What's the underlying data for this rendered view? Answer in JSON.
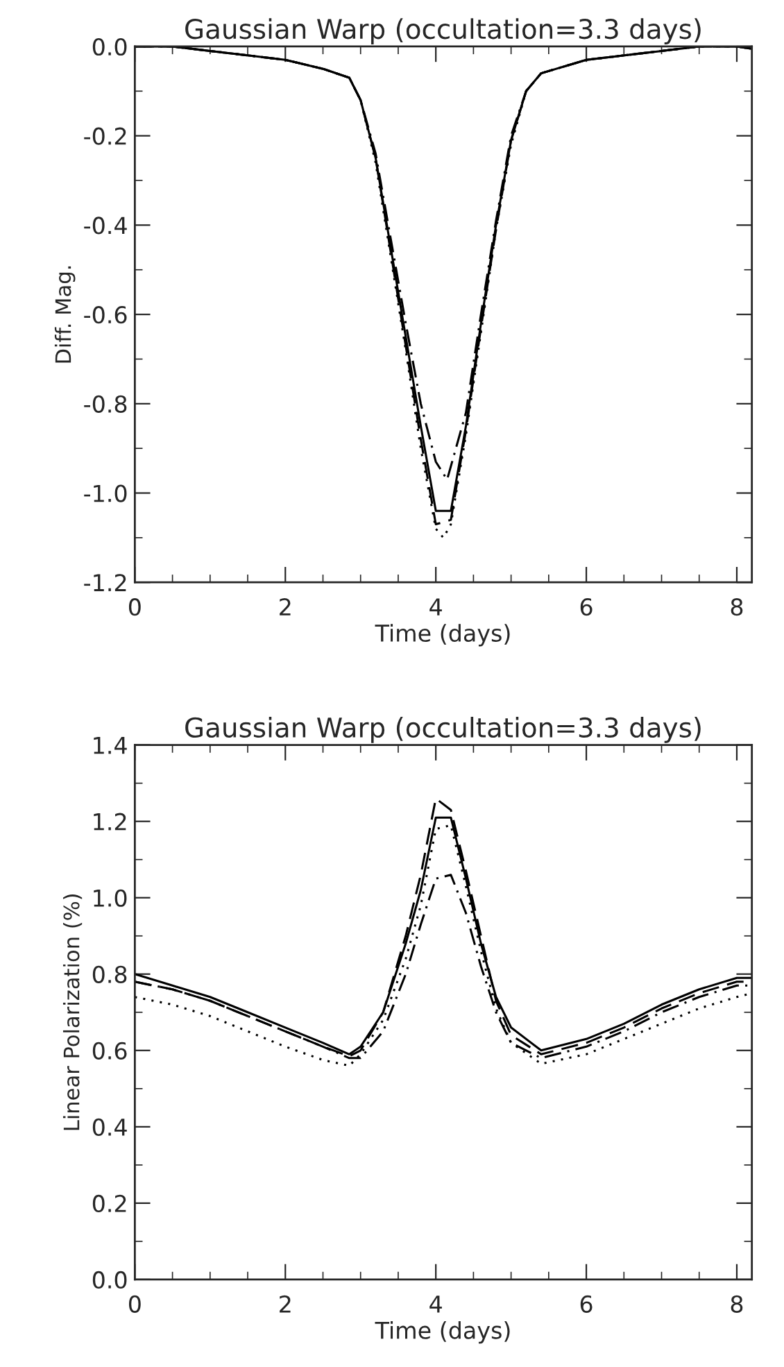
{
  "chart_data": [
    {
      "type": "line",
      "title": "Gaussian Warp (occultation=3.3 days)",
      "xlabel": "Time (days)",
      "ylabel": "Diff. Mag.",
      "xlim": [
        0,
        8.2
      ],
      "xticks": [
        0,
        2,
        4,
        6,
        8
      ],
      "ylim": [
        -1.2,
        0.0
      ],
      "yticks": [
        -1.2,
        {
          "value": -1,
          "label": "-1.0"
        },
        -0.8,
        -0.6,
        -0.4,
        -0.2,
        {
          "value": 0,
          "label": "0.0"
        }
      ],
      "grid": false,
      "legend": false,
      "x": [
        0,
        0.5,
        1.0,
        1.5,
        2.0,
        2.5,
        2.85,
        3.0,
        3.2,
        3.4,
        3.6,
        3.8,
        4.0,
        4.2,
        4.4,
        4.6,
        4.8,
        5.0,
        5.2,
        5.4,
        6.0,
        7.0,
        7.5,
        8.0,
        8.2
      ],
      "series": [
        {
          "color": "#000000",
          "line_style": "solid",
          "values": [
            0.0,
            0.0,
            -0.01,
            -0.02,
            -0.03,
            -0.05,
            -0.07,
            -0.12,
            -0.25,
            -0.45,
            -0.65,
            -0.85,
            -1.04,
            -1.04,
            -0.85,
            -0.62,
            -0.4,
            -0.21,
            -0.1,
            -0.06,
            -0.03,
            -0.01,
            0.0,
            0.0,
            -0.005
          ]
        },
        {
          "color": "#000000",
          "line_style": "dotted",
          "x": [
            0,
            0.5,
            1.0,
            1.5,
            2.0,
            2.5,
            2.85,
            3.0,
            3.2,
            3.4,
            3.6,
            3.8,
            4.0,
            4.1,
            4.2,
            4.4,
            4.6,
            4.8,
            5.0,
            5.2,
            5.4,
            6.0,
            7.0,
            7.5,
            8.0,
            8.2
          ],
          "values": [
            0.0,
            0.0,
            -0.01,
            -0.02,
            -0.03,
            -0.05,
            -0.07,
            -0.12,
            -0.26,
            -0.47,
            -0.68,
            -0.9,
            -1.08,
            -1.1,
            -1.07,
            -0.87,
            -0.64,
            -0.41,
            -0.22,
            -0.1,
            -0.06,
            -0.03,
            -0.01,
            0.0,
            0.0,
            -0.005
          ]
        },
        {
          "color": "#000000",
          "line_style": "dashed",
          "values": [
            0.0,
            0.0,
            -0.01,
            -0.02,
            -0.03,
            -0.05,
            -0.07,
            -0.12,
            -0.25,
            -0.46,
            -0.67,
            -0.88,
            -1.07,
            -1.06,
            -0.86,
            -0.63,
            -0.41,
            -0.21,
            -0.1,
            -0.06,
            -0.03,
            -0.01,
            0.0,
            0.0,
            -0.005
          ]
        },
        {
          "color": "#000000",
          "line_style": "dashdot",
          "x": [
            0,
            0.5,
            1.0,
            1.5,
            2.0,
            2.5,
            2.85,
            3.0,
            3.2,
            3.4,
            3.6,
            3.8,
            4.0,
            4.15,
            4.4,
            4.6,
            4.8,
            5.0,
            5.2,
            5.4,
            6.0,
            7.0,
            7.5,
            8.0,
            8.2
          ],
          "values": [
            0.0,
            0.0,
            -0.01,
            -0.02,
            -0.03,
            -0.05,
            -0.07,
            -0.12,
            -0.24,
            -0.43,
            -0.62,
            -0.8,
            -0.93,
            -0.97,
            -0.82,
            -0.6,
            -0.39,
            -0.2,
            -0.1,
            -0.06,
            -0.03,
            -0.01,
            0.0,
            0.0,
            -0.005
          ]
        }
      ]
    },
    {
      "type": "line",
      "title": "Gaussian Warp (occultation=3.3 days)",
      "xlabel": "Time (days)",
      "ylabel": "Linear Polarization (%)",
      "xlim": [
        0,
        8.2
      ],
      "xticks": [
        0,
        2,
        4,
        6,
        8
      ],
      "ylim": [
        0.0,
        1.4
      ],
      "yticks": [
        {
          "value": 0,
          "label": "0.0"
        },
        0.2,
        0.4,
        0.6,
        0.8,
        {
          "value": 1,
          "label": "1.0"
        },
        1.2,
        1.4
      ],
      "grid": false,
      "legend": false,
      "x": [
        0,
        0.5,
        1.0,
        1.5,
        2.0,
        2.5,
        2.85,
        3.0,
        3.3,
        3.6,
        3.8,
        4.0,
        4.2,
        4.4,
        4.6,
        4.8,
        5.0,
        5.4,
        6.0,
        6.5,
        7.0,
        7.5,
        8.0,
        8.2
      ],
      "series": [
        {
          "color": "#000000",
          "line_style": "solid",
          "values": [
            0.8,
            0.77,
            0.74,
            0.7,
            0.66,
            0.62,
            0.59,
            0.61,
            0.7,
            0.88,
            1.02,
            1.21,
            1.21,
            1.05,
            0.88,
            0.74,
            0.66,
            0.6,
            0.63,
            0.67,
            0.72,
            0.76,
            0.79,
            0.79
          ]
        },
        {
          "color": "#000000",
          "line_style": "dotted",
          "values": [
            0.74,
            0.72,
            0.69,
            0.65,
            0.61,
            0.575,
            0.56,
            0.59,
            0.68,
            0.84,
            0.98,
            1.18,
            1.19,
            1.03,
            0.86,
            0.71,
            0.62,
            0.565,
            0.59,
            0.63,
            0.67,
            0.71,
            0.74,
            0.75
          ]
        },
        {
          "color": "#000000",
          "line_style": "dashed",
          "values": [
            0.78,
            0.76,
            0.73,
            0.69,
            0.65,
            0.61,
            0.585,
            0.6,
            0.7,
            0.9,
            1.06,
            1.26,
            1.23,
            1.07,
            0.9,
            0.73,
            0.64,
            0.59,
            0.62,
            0.66,
            0.71,
            0.75,
            0.78,
            0.78
          ]
        },
        {
          "color": "#000000",
          "line_style": "dashdot",
          "values": [
            0.78,
            0.76,
            0.73,
            0.69,
            0.65,
            0.61,
            0.58,
            0.58,
            0.65,
            0.8,
            0.93,
            1.05,
            1.06,
            0.96,
            0.82,
            0.7,
            0.62,
            0.58,
            0.61,
            0.65,
            0.7,
            0.74,
            0.77,
            0.77
          ]
        }
      ]
    }
  ]
}
